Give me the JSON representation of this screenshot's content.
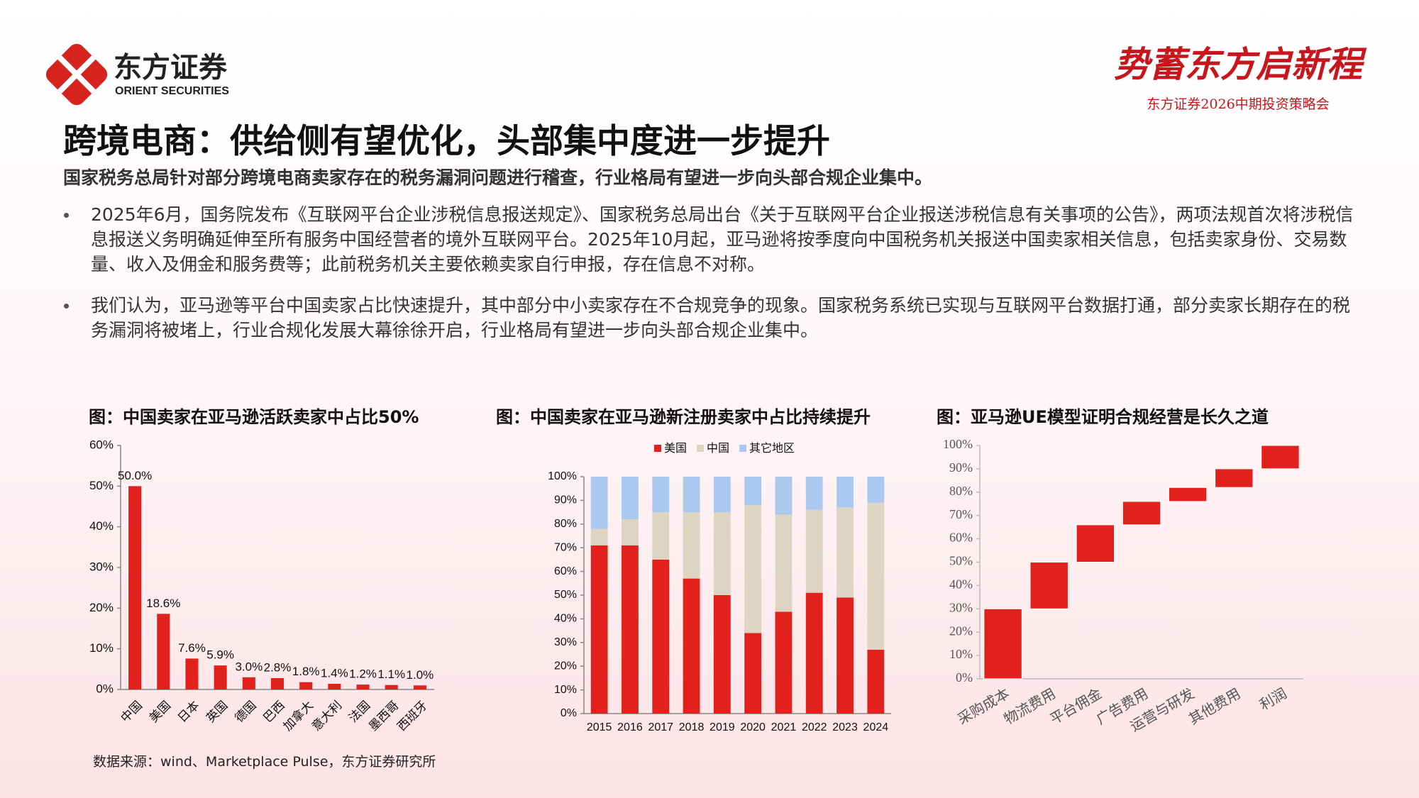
{
  "header": {
    "logo_cn": "东方证券",
    "logo_en": "ORIENT SECURITIES",
    "slogan": "势蓄东方启新程",
    "event": "东方证券2026中期投资策略会"
  },
  "title": "跨境电商：供给侧有望优化，头部集中度进一步提升",
  "subtitle": "国家税务总局针对部分跨境电商卖家存在的税务漏洞问题进行稽查，行业格局有望进一步向头部合规企业集中。",
  "bullets": [
    "2025年6月，国务院发布《互联网平台企业涉税信息报送规定》、国家税务总局出台《关于互联网平台企业报送涉税信息有关事项的公告》，两项法规首次将涉税信息报送义务明确延伸至所有服务中国经营者的境外互联网平台。2025年10月起，亚马逊将按季度向中国税务机关报送中国卖家相关信息，包括卖家身份、交易数量、收入及佣金和服务费等；此前税务机关主要依赖卖家自行申报，存在信息不对称。",
    "我们认为，亚马逊等平台中国卖家占比快速提升，其中部分中小卖家存在不合规竞争的现象。国家税务系统已实现与互联网平台数据打通，部分卖家长期存在的税务漏洞将被堵上，行业合规化发展大幕徐徐开启，行业格局有望进一步向头部合规企业集中。"
  ],
  "source": "数据来源：wind、Marketplace Pulse，东方证券研究所",
  "chart_data": [
    {
      "type": "bar",
      "title": "图：中国卖家在亚马逊活跃卖家中占比50%",
      "categories": [
        "中国",
        "美国",
        "日本",
        "英国",
        "德国",
        "巴西",
        "加拿大",
        "意大利",
        "法国",
        "墨西哥",
        "西班牙"
      ],
      "values": [
        50.0,
        18.6,
        7.6,
        5.9,
        3.0,
        2.8,
        1.8,
        1.4,
        1.2,
        1.1,
        1.0
      ],
      "value_labels": [
        "50.0%",
        "18.6%",
        "7.6%",
        "5.9%",
        "3.0%",
        "2.8%",
        "1.8%",
        "1.4%",
        "1.2%",
        "1.1%",
        "1.0%"
      ],
      "color": "#e3211c",
      "ylim": [
        0,
        60
      ],
      "yticks": [
        {
          "value": 0,
          "label": "0%"
        },
        {
          "value": 10,
          "label": "10%"
        },
        {
          "value": 20,
          "label": "20%"
        },
        {
          "value": 30,
          "label": "30%"
        },
        {
          "value": 40,
          "label": "40%"
        },
        {
          "value": 50,
          "label": "50%"
        },
        {
          "value": 60,
          "label": "60%"
        }
      ]
    },
    {
      "type": "stacked",
      "title": "图：中国卖家在亚马逊新注册卖家中占比持续提升",
      "categories": [
        "2015",
        "2016",
        "2017",
        "2018",
        "2019",
        "2020",
        "2021",
        "2022",
        "2023",
        "2024"
      ],
      "series": [
        {
          "name": "美国",
          "color": "#e3211c",
          "values": [
            71,
            71,
            65,
            57,
            50,
            34,
            43,
            51,
            49,
            27
          ]
        },
        {
          "name": "中国",
          "color": "#ddd4c2",
          "values": [
            7,
            11,
            20,
            28,
            35,
            54,
            41,
            35,
            38,
            62
          ]
        },
        {
          "name": "其它地区",
          "color": "#abc8f0",
          "values": [
            22,
            18,
            15,
            15,
            15,
            12,
            16,
            14,
            13,
            11
          ]
        }
      ],
      "ylim": [
        0,
        100
      ],
      "yticks": [
        {
          "value": 0,
          "label": "0%"
        },
        {
          "value": 10,
          "label": "10%"
        },
        {
          "value": 20,
          "label": "20%"
        },
        {
          "value": 30,
          "label": "30%"
        },
        {
          "value": 40,
          "label": "40%"
        },
        {
          "value": 50,
          "label": "50%"
        },
        {
          "value": 60,
          "label": "60%"
        },
        {
          "value": 70,
          "label": "70%"
        },
        {
          "value": 80,
          "label": "80%"
        },
        {
          "value": 90,
          "label": "90%"
        },
        {
          "value": 100,
          "label": "100%"
        }
      ]
    },
    {
      "type": "waterfall",
      "title": "图：亚马逊UE模型证明合规经营是长久之道",
      "categories": [
        "采购成本",
        "物流费用",
        "平台佣金",
        "广告费用",
        "运营与研发",
        "其他费用",
        "利润"
      ],
      "values": [
        30,
        20,
        16,
        10,
        6,
        8,
        10
      ],
      "color": "#e3211c",
      "ylim": [
        0,
        100
      ],
      "yticks": [
        {
          "value": 0,
          "label": "0%"
        },
        {
          "value": 10,
          "label": "10%"
        },
        {
          "value": 20,
          "label": "20%"
        },
        {
          "value": 30,
          "label": "30%"
        },
        {
          "value": 40,
          "label": "40%"
        },
        {
          "value": 50,
          "label": "50%"
        },
        {
          "value": 60,
          "label": "60%"
        },
        {
          "value": 70,
          "label": "70%"
        },
        {
          "value": 80,
          "label": "80%"
        },
        {
          "value": 90,
          "label": "90%"
        },
        {
          "value": 100,
          "label": "100%"
        }
      ]
    }
  ]
}
